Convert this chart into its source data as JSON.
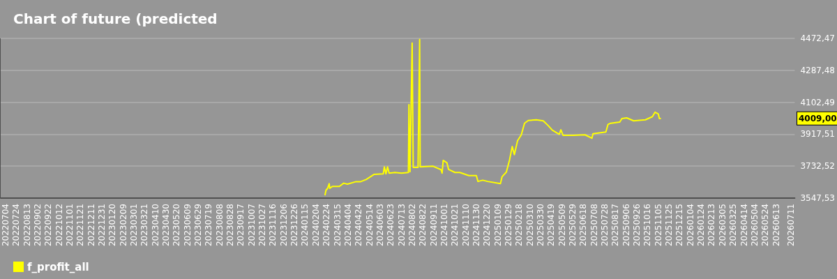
{
  "chart_data": {
    "type": "line",
    "title": "Chart of future (predicted",
    "series": [
      {
        "name": "f_profit_all",
        "color": "#ffff00",
        "x": [
          "2024-02-21",
          "2024-02-23",
          "2024-02-26",
          "2024-02-29",
          "2024-03-01",
          "2024-03-06",
          "2024-03-19",
          "2024-03-27",
          "2024-04-03",
          "2024-04-18",
          "2024-04-27",
          "2024-05-08",
          "2024-05-23",
          "2024-06-09",
          "2024-06-11",
          "2024-06-14",
          "2024-06-17",
          "2024-06-20",
          "2024-07-01",
          "2024-07-13",
          "2024-07-26",
          "2024-07-27",
          "2024-07-29",
          "2024-08-02",
          "2024-08-04",
          "2024-08-13",
          "2024-08-16",
          "2024-08-17",
          "2024-09-10",
          "2024-09-25",
          "2024-09-27",
          "2024-09-29",
          "2024-10-06",
          "2024-10-09",
          "2024-10-21",
          "2024-10-30",
          "2024-11-16",
          "2024-11-30",
          "2024-12-03",
          "2024-12-12",
          "2024-12-21",
          "2025-01-14",
          "2025-01-17",
          "2025-01-25",
          "2025-01-31",
          "2025-02-05",
          "2025-02-09",
          "2025-02-15",
          "2025-02-22",
          "2025-02-28",
          "2025-03-07",
          "2025-03-22",
          "2025-04-04",
          "2025-04-13",
          "2025-04-21",
          "2025-05-04",
          "2025-05-07",
          "2025-05-11",
          "2025-05-30",
          "2025-06-21",
          "2025-07-04",
          "2025-07-06",
          "2025-07-30",
          "2025-08-03",
          "2025-08-08",
          "2025-08-25",
          "2025-08-29",
          "2025-09-07",
          "2025-09-20",
          "2025-10-12",
          "2025-10-25",
          "2025-10-30",
          "2025-11-05",
          "2025-11-07",
          "2025-11-10"
        ],
        "values": [
          3564,
          3593,
          3604,
          3631,
          3604,
          3615,
          3615,
          3634,
          3628,
          3642,
          3642,
          3655,
          3685,
          3688,
          3728,
          3688,
          3728,
          3692,
          3696,
          3692,
          3696,
          4089,
          3700,
          4445,
          3725,
          3725,
          4466,
          3728,
          3732,
          3712,
          3692,
          3766,
          3752,
          3714,
          3696,
          3696,
          3678,
          3678,
          3644,
          3651,
          3644,
          3631,
          3671,
          3698,
          3768,
          3846,
          3799,
          3880,
          3914,
          3981,
          3997,
          4001,
          3995,
          3968,
          3941,
          3917,
          3943,
          3911,
          3911,
          3914,
          3894,
          3920,
          3930,
          3974,
          3981,
          3988,
          4008,
          4012,
          3995,
          4001,
          4019,
          4045,
          4035,
          4008,
          4009
        ]
      }
    ],
    "xlim": [
      "2022-06-25",
      "2026-07-18"
    ],
    "xticks": [
      {
        "value": "2022-07-04",
        "label": "20220704"
      },
      {
        "value": "2022-07-24",
        "label": "20220724"
      },
      {
        "value": "2022-08-13",
        "label": "20220813"
      },
      {
        "value": "2022-09-02",
        "label": "20220902"
      },
      {
        "value": "2022-09-22",
        "label": "20220922"
      },
      {
        "value": "2022-10-12",
        "label": "20221012"
      },
      {
        "value": "2022-11-01",
        "label": "20221101"
      },
      {
        "value": "2022-11-21",
        "label": "20221121"
      },
      {
        "value": "2022-12-11",
        "label": "20221211"
      },
      {
        "value": "2022-12-31",
        "label": "20221231"
      },
      {
        "value": "2023-01-20",
        "label": "20230120"
      },
      {
        "value": "2023-02-09",
        "label": "20230209"
      },
      {
        "value": "2023-03-01",
        "label": "20230301"
      },
      {
        "value": "2023-03-21",
        "label": "20230321"
      },
      {
        "value": "2023-04-10",
        "label": "20230410"
      },
      {
        "value": "2023-04-30",
        "label": "20230430"
      },
      {
        "value": "2023-05-20",
        "label": "20230520"
      },
      {
        "value": "2023-06-09",
        "label": "20230609"
      },
      {
        "value": "2023-06-29",
        "label": "20230629"
      },
      {
        "value": "2023-07-19",
        "label": "20230719"
      },
      {
        "value": "2023-08-08",
        "label": "20230808"
      },
      {
        "value": "2023-08-28",
        "label": "20230828"
      },
      {
        "value": "2023-09-17",
        "label": "20230917"
      },
      {
        "value": "2023-10-07",
        "label": "20231007"
      },
      {
        "value": "2023-10-27",
        "label": "20231027"
      },
      {
        "value": "2023-11-16",
        "label": "20231116"
      },
      {
        "value": "2023-12-06",
        "label": "20231206"
      },
      {
        "value": "2023-12-26",
        "label": "20231226"
      },
      {
        "value": "2024-01-15",
        "label": "20240115"
      },
      {
        "value": "2024-02-04",
        "label": "20240204"
      },
      {
        "value": "2024-02-24",
        "label": "20240224"
      },
      {
        "value": "2024-03-15",
        "label": "20240315"
      },
      {
        "value": "2024-04-04",
        "label": "20240404"
      },
      {
        "value": "2024-04-24",
        "label": "20240424"
      },
      {
        "value": "2024-05-14",
        "label": "20240514"
      },
      {
        "value": "2024-06-03",
        "label": "20240603"
      },
      {
        "value": "2024-06-23",
        "label": "20240623"
      },
      {
        "value": "2024-07-13",
        "label": "20240713"
      },
      {
        "value": "2024-08-02",
        "label": "20240802"
      },
      {
        "value": "2024-08-22",
        "label": "20240822"
      },
      {
        "value": "2024-09-11",
        "label": "20240911"
      },
      {
        "value": "2024-10-01",
        "label": "20241001"
      },
      {
        "value": "2024-10-21",
        "label": "20241021"
      },
      {
        "value": "2024-11-10",
        "label": "20241110"
      },
      {
        "value": "2024-11-30",
        "label": "20241130"
      },
      {
        "value": "2024-12-20",
        "label": "20241220"
      },
      {
        "value": "2025-01-09",
        "label": "20250109"
      },
      {
        "value": "2025-01-29",
        "label": "20250129"
      },
      {
        "value": "2025-02-18",
        "label": "20250218"
      },
      {
        "value": "2025-03-10",
        "label": "20250310"
      },
      {
        "value": "2025-03-30",
        "label": "20250330"
      },
      {
        "value": "2025-04-19",
        "label": "20250419"
      },
      {
        "value": "2025-05-09",
        "label": "20250509"
      },
      {
        "value": "2025-05-29",
        "label": "20250529"
      },
      {
        "value": "2025-06-18",
        "label": "20250618"
      },
      {
        "value": "2025-07-08",
        "label": "20250708"
      },
      {
        "value": "2025-07-28",
        "label": "20250728"
      },
      {
        "value": "2025-08-17",
        "label": "20250817"
      },
      {
        "value": "2025-09-06",
        "label": "20250906"
      },
      {
        "value": "2025-09-26",
        "label": "20250926"
      },
      {
        "value": "2025-10-16",
        "label": "20251016"
      },
      {
        "value": "2025-11-05",
        "label": "20251105"
      },
      {
        "value": "2025-11-25",
        "label": "20251125"
      },
      {
        "value": "2025-12-15",
        "label": "20251215"
      },
      {
        "value": "2026-01-04",
        "label": "20260104"
      },
      {
        "value": "2026-01-24",
        "label": "20260124"
      },
      {
        "value": "2026-02-13",
        "label": "20260213"
      },
      {
        "value": "2026-03-05",
        "label": "20260305"
      },
      {
        "value": "2026-03-25",
        "label": "20260325"
      },
      {
        "value": "2026-04-14",
        "label": "20260414"
      },
      {
        "value": "2026-05-04",
        "label": "20260504"
      },
      {
        "value": "2026-05-24",
        "label": "20260524"
      },
      {
        "value": "2026-06-13",
        "label": "20260613"
      },
      {
        "value": "2026-07-11",
        "label": "20260711"
      }
    ],
    "ylim": [
      3547.53,
      4472.47
    ],
    "yticks": [
      {
        "value": 3547.53,
        "label": "3547,53"
      },
      {
        "value": 3732.52,
        "label": "3732,52"
      },
      {
        "value": 3917.51,
        "label": "3917,51"
      },
      {
        "value": 4102.49,
        "label": "4102,49"
      },
      {
        "value": 4287.48,
        "label": "4287,48"
      },
      {
        "value": 4472.47,
        "label": "4472,47"
      }
    ],
    "annotations": [
      "4009,00"
    ],
    "grid": "y",
    "legend": "bottom left",
    "marker": "none",
    "line_style": "solid"
  }
}
